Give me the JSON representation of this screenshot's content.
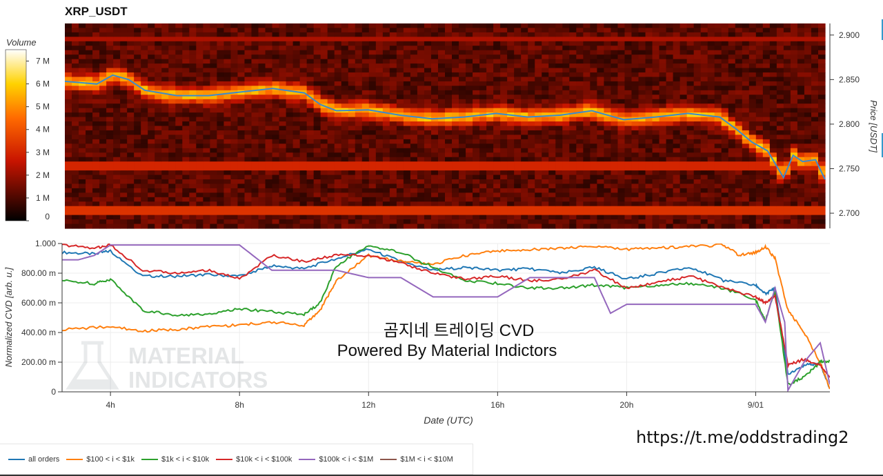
{
  "title": "XRP_USDT",
  "url_text": "https://t.me/oddstrading2",
  "colors": {
    "all_orders": "#1f77b4",
    "usd_100_1k": "#ff7f0e",
    "usd_1k_10k": "#2ca02c",
    "usd_10k_100k": "#d62728",
    "usd_100k_1m": "#9467bd",
    "usd_1m_10m": "#8c564b"
  },
  "chart_data": [
    {
      "type": "heatmap",
      "title": "XRP_USDT",
      "ylabel": "Price [USDT]",
      "colorbar_label": "Volume",
      "colorbar_ticks": [
        "0",
        "1 M",
        "2 M",
        "3 M",
        "4 M",
        "5 M",
        "6 M",
        "7 M"
      ],
      "colorbar_range": [
        0,
        7500000
      ],
      "y_ticks": [
        "2.700",
        "2.750",
        "2.800",
        "2.850",
        "2.900"
      ],
      "ylim": [
        2.683,
        2.913
      ],
      "xlim_hours": [
        2.5,
        26.3
      ],
      "x_ticks": [
        "4h",
        "8h",
        "12h",
        "16h",
        "20h",
        "9/01"
      ],
      "price_series": {
        "name": "Price",
        "x": [
          2.5,
          3.5,
          4.0,
          4.5,
          5.0,
          6.0,
          7.0,
          8.0,
          9.0,
          10.0,
          10.5,
          11.0,
          12.0,
          13.0,
          14.0,
          15.0,
          16.0,
          17.0,
          18.0,
          19.0,
          20.0,
          21.0,
          22.0,
          23.0,
          23.5,
          24.0,
          24.5,
          25.0,
          25.3,
          25.6,
          26.0,
          26.3
        ],
        "y": [
          2.848,
          2.845,
          2.855,
          2.85,
          2.838,
          2.832,
          2.832,
          2.836,
          2.84,
          2.835,
          2.822,
          2.815,
          2.816,
          2.81,
          2.806,
          2.808,
          2.812,
          2.808,
          2.81,
          2.815,
          2.805,
          2.808,
          2.812,
          2.808,
          2.795,
          2.78,
          2.77,
          2.74,
          2.765,
          2.758,
          2.76,
          2.738
        ]
      }
    },
    {
      "type": "line",
      "ylabel": "Normalized CVD [arb. u.]",
      "xlabel": "Date (UTC)",
      "ylim": [
        0,
        1.0
      ],
      "y_ticks": [
        "0",
        "200.00 m",
        "400.00 m",
        "600.00 m",
        "800.00 m",
        "1.000"
      ],
      "x_ticks": [
        "4h",
        "8h",
        "12h",
        "16h",
        "20h",
        "9/01"
      ],
      "annotation_line1": "곰지네 트레이딩 CVD",
      "annotation_line2": "Powered By Material Indictors",
      "watermark_line1": "MATERIAL",
      "watermark_line2": "INDICATORS",
      "series": [
        {
          "name": "all orders",
          "x": [
            2.5,
            3.5,
            4.0,
            5.0,
            6.0,
            7.0,
            8.0,
            9.0,
            10.0,
            11.0,
            12.0,
            13.0,
            14.0,
            15.0,
            16.0,
            17.0,
            18.0,
            19.0,
            20.0,
            21.0,
            22.0,
            23.0,
            24.0,
            24.3,
            24.6,
            25.0,
            25.5,
            26.0,
            26.3
          ],
          "y": [
            0.94,
            0.93,
            0.95,
            0.78,
            0.78,
            0.79,
            0.78,
            0.85,
            0.83,
            0.9,
            0.96,
            0.88,
            0.82,
            0.84,
            0.82,
            0.83,
            0.8,
            0.84,
            0.76,
            0.8,
            0.84,
            0.75,
            0.72,
            0.66,
            0.7,
            0.12,
            0.18,
            0.19,
            0.02
          ]
        },
        {
          "name": "$100 < i < $1k",
          "x": [
            2.5,
            4.0,
            5.0,
            6.0,
            7.0,
            8.0,
            9.0,
            10.0,
            10.5,
            11.0,
            12.0,
            13.0,
            14.0,
            15.0,
            16.0,
            17.0,
            18.0,
            19.0,
            20.0,
            21.0,
            22.0,
            23.0,
            23.5,
            24.0,
            24.3,
            24.6,
            25.0,
            25.5,
            26.0,
            26.3
          ],
          "y": [
            0.42,
            0.44,
            0.41,
            0.42,
            0.44,
            0.45,
            0.47,
            0.45,
            0.55,
            0.75,
            0.92,
            0.88,
            0.86,
            0.92,
            0.95,
            0.96,
            0.97,
            0.98,
            0.96,
            0.97,
            0.98,
            0.99,
            0.92,
            0.94,
            0.98,
            0.9,
            0.55,
            0.4,
            0.2,
            0.02
          ]
        },
        {
          "name": "$1k < i < $10k",
          "x": [
            2.5,
            3.5,
            4.0,
            5.0,
            6.0,
            7.0,
            8.0,
            9.0,
            10.0,
            10.5,
            11.0,
            12.0,
            13.0,
            14.0,
            15.0,
            16.0,
            17.0,
            18.0,
            19.0,
            20.0,
            21.0,
            22.0,
            23.0,
            24.0,
            24.3,
            24.6,
            25.0,
            25.5,
            26.0,
            26.3
          ],
          "y": [
            0.75,
            0.73,
            0.76,
            0.55,
            0.52,
            0.52,
            0.56,
            0.54,
            0.52,
            0.6,
            0.85,
            0.99,
            0.94,
            0.84,
            0.75,
            0.73,
            0.7,
            0.7,
            0.72,
            0.7,
            0.72,
            0.73,
            0.7,
            0.62,
            0.48,
            0.68,
            0.05,
            0.1,
            0.2,
            0.21
          ]
        },
        {
          "name": "$10k < i < $100k",
          "x": [
            2.5,
            3.5,
            4.0,
            5.0,
            6.0,
            7.0,
            8.0,
            9.0,
            10.0,
            11.0,
            12.0,
            13.0,
            14.0,
            15.0,
            16.0,
            17.0,
            18.0,
            19.0,
            20.0,
            21.0,
            22.0,
            23.0,
            24.0,
            24.3,
            24.6,
            25.0,
            25.5,
            26.0,
            26.3
          ],
          "y": [
            0.99,
            0.97,
            0.99,
            0.82,
            0.8,
            0.82,
            0.76,
            0.92,
            0.88,
            0.92,
            0.92,
            0.87,
            0.8,
            0.76,
            0.78,
            0.75,
            0.76,
            0.82,
            0.7,
            0.74,
            0.78,
            0.7,
            0.64,
            0.6,
            0.65,
            0.18,
            0.22,
            0.18,
            0.1
          ]
        },
        {
          "name": "$100k < i < $1M",
          "x": [
            2.5,
            3.0,
            3.5,
            4.0,
            4.5,
            5.0,
            6.0,
            7.0,
            8.0,
            9.0,
            10.0,
            11.0,
            12.0,
            13.0,
            14.0,
            15.0,
            16.0,
            17.0,
            18.0,
            19.0,
            19.5,
            20.0,
            21.0,
            22.0,
            23.0,
            24.0,
            24.3,
            24.6,
            24.9,
            25.0,
            25.5,
            26.0,
            26.3
          ],
          "y": [
            0.89,
            0.89,
            0.92,
            0.99,
            0.99,
            0.99,
            0.99,
            0.99,
            0.99,
            0.82,
            0.82,
            0.82,
            0.77,
            0.77,
            0.64,
            0.64,
            0.64,
            0.77,
            0.77,
            0.77,
            0.53,
            0.59,
            0.59,
            0.59,
            0.59,
            0.59,
            0.47,
            0.7,
            0.47,
            0.01,
            0.2,
            0.33,
            0.05
          ]
        },
        {
          "name": "$1M < i < $10M",
          "x": [],
          "y": []
        }
      ]
    }
  ]
}
